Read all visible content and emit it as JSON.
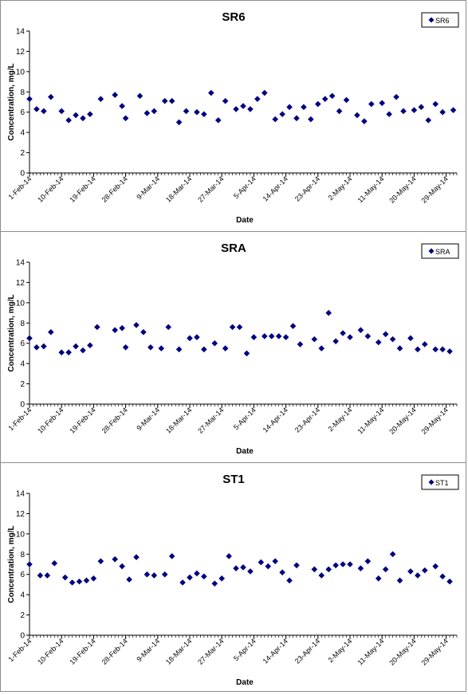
{
  "colors": {
    "marker": "#000080",
    "axis": "#000000",
    "border": "#8c8c8c"
  },
  "chart_data": [
    {
      "type": "scatter",
      "title": "SR6",
      "xlabel": "Date",
      "ylabel": "Concentration, mg/L",
      "ylim": [
        0,
        14
      ],
      "yticks": [
        0,
        2,
        4,
        6,
        8,
        10,
        12,
        14
      ],
      "xlim": [
        "2014-02-01",
        "2014-06-01"
      ],
      "xticks": [
        "1-Feb-14",
        "10-Feb-14",
        "19-Feb-14",
        "28-Feb-14",
        "9-Mar-14",
        "18-Mar-14",
        "27-Mar-14",
        "5-Apr-14",
        "14-Apr-14",
        "23-Apr-14",
        "2-May-14",
        "11-May-14",
        "20-May-14",
        "29-May-14"
      ],
      "grid": false,
      "legend": "top-right",
      "series": [
        {
          "name": "SR6",
          "x": [
            "2014-02-01",
            "2014-02-03",
            "2014-02-05",
            "2014-02-07",
            "2014-02-10",
            "2014-02-12",
            "2014-02-14",
            "2014-02-16",
            "2014-02-18",
            "2014-02-21",
            "2014-02-25",
            "2014-02-27",
            "2014-02-28",
            "2014-03-04",
            "2014-03-06",
            "2014-03-08",
            "2014-03-11",
            "2014-03-13",
            "2014-03-15",
            "2014-03-17",
            "2014-03-20",
            "2014-03-22",
            "2014-03-24",
            "2014-03-26",
            "2014-03-28",
            "2014-03-31",
            "2014-04-02",
            "2014-04-04",
            "2014-04-06",
            "2014-04-08",
            "2014-04-11",
            "2014-04-13",
            "2014-04-15",
            "2014-04-17",
            "2014-04-19",
            "2014-04-21",
            "2014-04-23",
            "2014-04-25",
            "2014-04-27",
            "2014-04-29",
            "2014-05-01",
            "2014-05-04",
            "2014-05-06",
            "2014-05-08",
            "2014-05-11",
            "2014-05-13",
            "2014-05-15",
            "2014-05-17",
            "2014-05-20",
            "2014-05-22",
            "2014-05-24",
            "2014-05-26",
            "2014-05-28",
            "2014-05-31"
          ],
          "y": [
            7.3,
            6.3,
            6.1,
            7.5,
            6.1,
            5.2,
            5.7,
            5.4,
            5.8,
            7.3,
            7.7,
            6.6,
            5.4,
            7.6,
            5.9,
            6.1,
            7.1,
            7.1,
            5.0,
            6.1,
            6.0,
            5.8,
            7.9,
            5.2,
            7.1,
            6.3,
            6.6,
            6.3,
            7.3,
            7.9,
            5.3,
            5.8,
            6.5,
            5.4,
            6.5,
            5.3,
            6.8,
            7.3,
            7.6,
            6.1,
            7.2,
            5.7,
            5.1,
            6.8,
            6.9,
            5.8,
            7.5,
            6.1,
            6.2,
            6.5,
            5.2,
            6.8,
            6.0,
            6.2
          ]
        }
      ]
    },
    {
      "type": "scatter",
      "title": "SRA",
      "xlabel": "Date",
      "ylabel": "Concentration, mg/L",
      "ylim": [
        0,
        14
      ],
      "yticks": [
        0,
        2,
        4,
        6,
        8,
        10,
        12,
        14
      ],
      "xlim": [
        "2014-02-01",
        "2014-06-01"
      ],
      "xticks": [
        "1-Feb-14",
        "10-Feb-14",
        "19-Feb-14",
        "28-Feb-14",
        "9-Mar-14",
        "18-Mar-14",
        "27-Mar-14",
        "5-Apr-14",
        "14-Apr-14",
        "23-Apr-14",
        "2-May-14",
        "11-May-14",
        "20-May-14",
        "29-May-14"
      ],
      "grid": false,
      "legend": "top-right",
      "series": [
        {
          "name": "SRA",
          "x": [
            "2014-02-01",
            "2014-02-03",
            "2014-02-05",
            "2014-02-07",
            "2014-02-10",
            "2014-02-12",
            "2014-02-14",
            "2014-02-16",
            "2014-02-18",
            "2014-02-20",
            "2014-02-25",
            "2014-02-27",
            "2014-02-28",
            "2014-03-03",
            "2014-03-05",
            "2014-03-07",
            "2014-03-10",
            "2014-03-12",
            "2014-03-15",
            "2014-03-18",
            "2014-03-20",
            "2014-03-22",
            "2014-03-25",
            "2014-03-28",
            "2014-03-30",
            "2014-04-01",
            "2014-04-03",
            "2014-04-05",
            "2014-04-08",
            "2014-04-10",
            "2014-04-12",
            "2014-04-14",
            "2014-04-16",
            "2014-04-18",
            "2014-04-22",
            "2014-04-24",
            "2014-04-26",
            "2014-04-28",
            "2014-04-30",
            "2014-05-02",
            "2014-05-05",
            "2014-05-07",
            "2014-05-10",
            "2014-05-12",
            "2014-05-14",
            "2014-05-16",
            "2014-05-19",
            "2014-05-21",
            "2014-05-23",
            "2014-05-26",
            "2014-05-28",
            "2014-05-30"
          ],
          "y": [
            6.5,
            5.6,
            5.7,
            7.1,
            5.1,
            5.1,
            5.7,
            5.3,
            5.8,
            7.6,
            7.3,
            7.5,
            5.6,
            7.8,
            7.1,
            5.6,
            5.5,
            7.6,
            5.4,
            6.5,
            6.6,
            5.4,
            6.0,
            5.5,
            7.6,
            7.6,
            5.0,
            6.6,
            6.7,
            6.7,
            6.7,
            6.6,
            7.7,
            5.9,
            6.4,
            5.5,
            9.0,
            6.2,
            7.0,
            6.6,
            7.3,
            6.7,
            6.1,
            6.9,
            6.4,
            5.5,
            6.5,
            5.4,
            5.9,
            5.4,
            5.4,
            5.2
          ]
        }
      ]
    },
    {
      "type": "scatter",
      "title": "ST1",
      "xlabel": "Date",
      "ylabel": "Concentration, mg/L",
      "ylim": [
        0,
        14
      ],
      "yticks": [
        0,
        2,
        4,
        6,
        8,
        10,
        12,
        14
      ],
      "xlim": [
        "2014-02-01",
        "2014-06-01"
      ],
      "xticks": [
        "1-Feb-14",
        "10-Feb-14",
        "19-Feb-14",
        "28-Feb-14",
        "9-Mar-14",
        "18-Mar-14",
        "27-Mar-14",
        "5-Apr-14",
        "14-Apr-14",
        "23-Apr-14",
        "2-May-14",
        "11-May-14",
        "20-May-14",
        "29-May-14"
      ],
      "grid": false,
      "legend": "top-right",
      "series": [
        {
          "name": "ST1",
          "x": [
            "2014-02-01",
            "2014-02-04",
            "2014-02-06",
            "2014-02-08",
            "2014-02-11",
            "2014-02-13",
            "2014-02-15",
            "2014-02-17",
            "2014-02-19",
            "2014-02-21",
            "2014-02-25",
            "2014-02-27",
            "2014-03-01",
            "2014-03-03",
            "2014-03-06",
            "2014-03-08",
            "2014-03-11",
            "2014-03-13",
            "2014-03-16",
            "2014-03-18",
            "2014-03-20",
            "2014-03-22",
            "2014-03-25",
            "2014-03-27",
            "2014-03-29",
            "2014-03-31",
            "2014-04-02",
            "2014-04-04",
            "2014-04-07",
            "2014-04-09",
            "2014-04-11",
            "2014-04-13",
            "2014-04-15",
            "2014-04-17",
            "2014-04-22",
            "2014-04-24",
            "2014-04-26",
            "2014-04-28",
            "2014-04-30",
            "2014-05-02",
            "2014-05-05",
            "2014-05-07",
            "2014-05-10",
            "2014-05-12",
            "2014-05-14",
            "2014-05-16",
            "2014-05-19",
            "2014-05-21",
            "2014-05-23",
            "2014-05-26",
            "2014-05-28",
            "2014-05-30"
          ],
          "y": [
            7.0,
            5.9,
            5.9,
            7.1,
            5.7,
            5.2,
            5.3,
            5.4,
            5.6,
            7.3,
            7.5,
            6.8,
            5.5,
            7.7,
            6.0,
            5.9,
            6.0,
            7.8,
            5.2,
            5.7,
            6.1,
            5.8,
            5.1,
            5.6,
            7.8,
            6.6,
            6.7,
            6.3,
            7.2,
            6.8,
            7.3,
            6.2,
            5.4,
            6.9,
            6.5,
            5.9,
            6.5,
            6.9,
            7.0,
            7.0,
            6.6,
            7.3,
            5.6,
            6.5,
            8.0,
            5.4,
            6.3,
            5.9,
            6.4,
            6.8,
            5.8,
            5.3
          ]
        }
      ]
    }
  ]
}
